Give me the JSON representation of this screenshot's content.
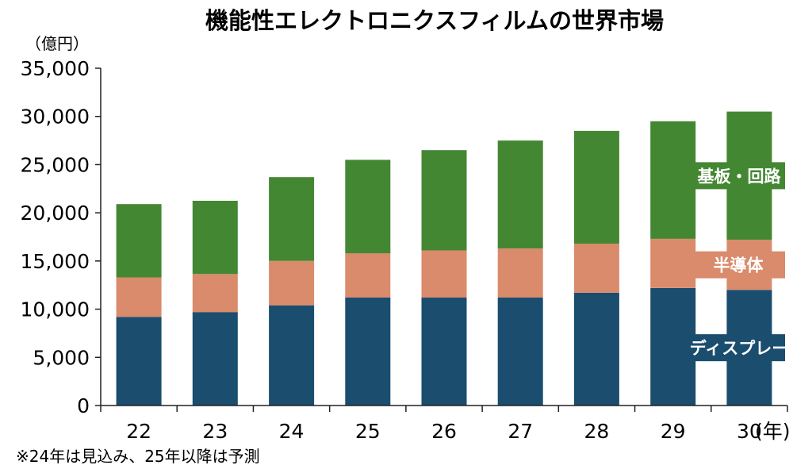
{
  "chart_data": {
    "type": "bar",
    "stacked": true,
    "title": "機能性エレクトロニクスフィルムの世界市場",
    "y_unit": "（億円）",
    "x_unit": "(年)",
    "note": "※24年は見込み、25年以降は予測",
    "categories": [
      "22",
      "23",
      "24",
      "25",
      "26",
      "27",
      "28",
      "29",
      "30"
    ],
    "ylim": [
      0,
      35000
    ],
    "yticks": [
      0,
      5000,
      10000,
      15000,
      20000,
      25000,
      30000,
      35000
    ],
    "ytick_labels": [
      "0",
      "5,000",
      "10,000",
      "15,000",
      "20,000",
      "25,000",
      "30,000",
      "35,000"
    ],
    "grid": false,
    "series": [
      {
        "name": "ディスプレー",
        "color": "#1a4d6e",
        "values": [
          9200,
          9700,
          10400,
          11200,
          11200,
          11200,
          11700,
          12200,
          12000
        ]
      },
      {
        "name": "半導体",
        "color": "#d98b6c",
        "values": [
          4100,
          3950,
          4600,
          4600,
          4900,
          5100,
          5100,
          5100,
          5200
        ]
      },
      {
        "name": "基板・回路",
        "color": "#448733",
        "values": [
          7600,
          7600,
          8700,
          9700,
          10400,
          11200,
          11700,
          12200,
          13300
        ]
      }
    ]
  }
}
